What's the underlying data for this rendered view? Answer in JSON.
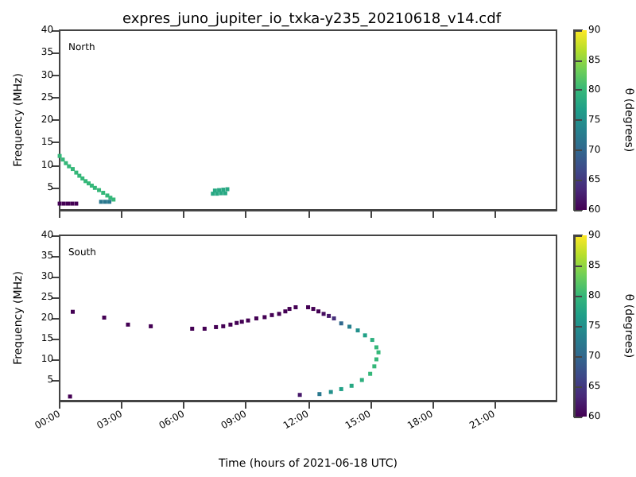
{
  "chart_data": [
    {
      "type": "scatter",
      "title": "expres_juno_jupiter_io_txka-y235_20210618_v14.cdf",
      "ylabel": "Frequency (MHz)",
      "clabel": "θ (degrees)",
      "annotations": [
        "North"
      ],
      "tick_labels": "y",
      "marker": "square",
      "grid": false,
      "xlim": [
        0,
        24
      ],
      "xticks": [
        {
          "value": 0,
          "label": null
        },
        {
          "value": 3,
          "label": null
        },
        {
          "value": 6,
          "label": null
        },
        {
          "value": 9,
          "label": null
        },
        {
          "value": 12,
          "label": null
        },
        {
          "value": 15,
          "label": null
        },
        {
          "value": 18,
          "label": null
        },
        {
          "value": 21,
          "label": null
        }
      ],
      "ylim": [
        0,
        40
      ],
      "yticks": [
        5,
        10,
        15,
        20,
        25,
        30,
        35,
        40
      ],
      "clim": [
        60,
        90
      ],
      "cticks": [
        60,
        65,
        70,
        75,
        80,
        85,
        90
      ],
      "series": [
        {
          "x": [
            0,
            0.15,
            0.3,
            0.45,
            0.63,
            0.8,
            0.95,
            1.1,
            1.25,
            1.4,
            1.55,
            1.7,
            1.9,
            2.1,
            2.3,
            2.45,
            2.6
          ],
          "values": [
            12,
            11.2,
            10.4,
            9.7,
            9.1,
            8.3,
            7.6,
            7,
            6.4,
            5.9,
            5.4,
            4.9,
            4.4,
            3.8,
            3.2,
            2.7,
            2.3
          ],
          "cvalues": [
            80,
            80,
            80,
            80,
            80,
            80,
            80,
            80,
            80,
            80,
            80,
            80,
            80,
            80,
            80,
            80,
            80
          ]
        },
        {
          "x": [
            0,
            0.2,
            0.4,
            0.6,
            0.8
          ],
          "values": [
            1.4,
            1.4,
            1.4,
            1.4,
            1.4
          ],
          "cvalues": [
            60,
            60,
            60,
            60,
            60
          ]
        },
        {
          "x": [
            2,
            2.2,
            2.4
          ],
          "values": [
            1.8,
            1.8,
            1.8
          ],
          "cvalues": [
            72,
            72,
            72
          ]
        },
        {
          "x": [
            7.4,
            7.6,
            7.8,
            8,
            7.5,
            7.7,
            7.9,
            8.1
          ],
          "values": [
            3.6,
            3.6,
            3.7,
            3.7,
            4.3,
            4.4,
            4.5,
            4.6
          ],
          "cvalues": [
            78,
            78,
            78,
            78,
            78,
            78,
            78,
            78
          ]
        }
      ]
    },
    {
      "type": "scatter",
      "xlabel": "Time (hours of 2021-06-18 UTC)",
      "ylabel": "Frequency (MHz)",
      "clabel": "θ (degrees)",
      "annotations": [
        "South"
      ],
      "marker": "square",
      "grid": false,
      "xlim": [
        0,
        24
      ],
      "xticks": [
        {
          "value": 0,
          "label": "00:00"
        },
        {
          "value": 3,
          "label": "03:00"
        },
        {
          "value": 6,
          "label": "06:00"
        },
        {
          "value": 9,
          "label": "09:00"
        },
        {
          "value": 12,
          "label": "12:00"
        },
        {
          "value": 15,
          "label": "15:00"
        },
        {
          "value": 18,
          "label": "18:00"
        },
        {
          "value": 21,
          "label": "21:00"
        }
      ],
      "ylim": [
        0,
        40
      ],
      "yticks": [
        5,
        10,
        15,
        20,
        25,
        30,
        35,
        40
      ],
      "clim": [
        60,
        90
      ],
      "cticks": [
        60,
        65,
        70,
        75,
        80,
        85,
        90
      ],
      "series": [
        {
          "x": [
            0.63,
            2.15,
            3.3,
            4.4,
            6.4,
            7,
            7.55,
            7.9,
            8.25,
            8.55,
            8.8,
            9.1,
            9.5,
            9.9,
            10.25,
            10.6,
            10.9,
            11.1,
            11.4,
            12,
            12.25,
            12.5,
            12.75,
            13,
            13.25,
            13.6,
            14,
            14.4,
            14.75,
            15.1,
            15.3,
            15.4,
            15.3,
            15.2,
            15,
            14.6,
            14.1,
            13.6,
            13.1,
            12.55,
            11.6,
            0.5
          ],
          "values": [
            21.5,
            20.1,
            18.4,
            18,
            17.4,
            17.4,
            17.8,
            18,
            18.4,
            18.8,
            19.1,
            19.4,
            19.9,
            20.2,
            20.7,
            21,
            21.6,
            22.2,
            22.6,
            22.6,
            22.2,
            21.6,
            21,
            20.5,
            19.9,
            18.7,
            17.9,
            17,
            15.8,
            14.7,
            12.9,
            11.7,
            10,
            8.3,
            6.5,
            5,
            3.6,
            2.8,
            2.1,
            1.6,
            1.4,
            1
          ],
          "cvalues": [
            60,
            60,
            60,
            60,
            60,
            60,
            60,
            60,
            60,
            60,
            60,
            60,
            60,
            60,
            60,
            60,
            60,
            60,
            60,
            60,
            60,
            60,
            61,
            62,
            64,
            70,
            73,
            75,
            77,
            79,
            80,
            80,
            80,
            80,
            80,
            79,
            78,
            77,
            75,
            72,
            62,
            60
          ]
        }
      ]
    }
  ]
}
